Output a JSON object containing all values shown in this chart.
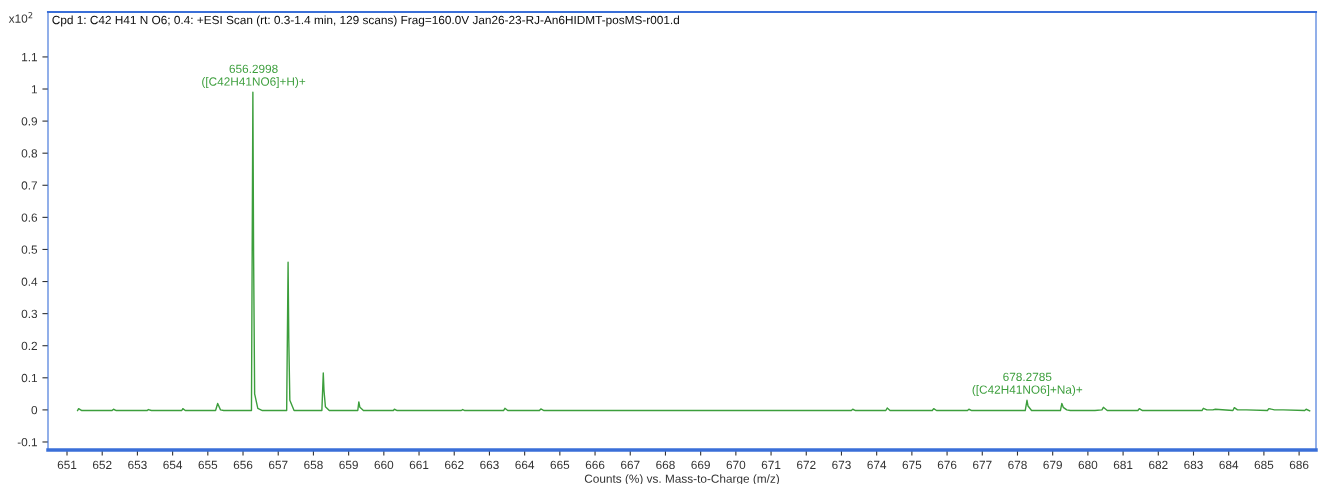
{
  "chart_data": {
    "type": "line",
    "title": "Cpd 1: C42 H41 N O6; 0.4: +ESI Scan (rt: 0.3-1.4 min, 129 scans) Frag=160.0V Jan26-23-RJ-An6HIDMT-posMS-r001.d",
    "xlabel": "Counts (%) vs. Mass-to-Charge (m/z)",
    "ylabel": "x10$^{2}$",
    "series": [
      {
        "color": "#3c9e3c",
        "x": [
          651.3,
          651.33,
          651.42,
          652.28,
          652.32,
          652.4,
          653.28,
          653.31,
          653.4,
          654.26,
          654.29,
          654.36,
          655.22,
          655.28,
          655.36,
          655.45,
          656.24,
          656.28,
          656.3,
          656.33,
          656.42,
          656.55,
          657.24,
          657.28,
          657.3,
          657.33,
          657.45,
          658.24,
          658.28,
          658.3,
          658.34,
          658.45,
          659.26,
          659.29,
          659.32,
          659.42,
          660.27,
          660.3,
          660.38,
          662.2,
          662.24,
          662.3,
          663.4,
          663.44,
          663.52,
          664.42,
          664.46,
          664.55,
          673.28,
          673.32,
          673.4,
          674.26,
          674.3,
          674.38,
          675.58,
          675.62,
          675.7,
          676.58,
          676.62,
          676.7,
          678.22,
          678.27,
          678.3,
          678.4,
          679.22,
          679.26,
          679.3,
          679.4,
          679.5,
          680.2,
          680.4,
          680.44,
          680.55,
          681.42,
          681.46,
          681.55,
          683.24,
          683.28,
          683.38,
          683.55,
          683.62,
          684.12,
          684.16,
          684.25,
          684.5,
          685.1,
          685.14,
          685.3,
          685.55,
          686.16,
          686.2,
          686.3
        ],
        "values": [
          -0.002,
          0.004,
          -0.002,
          -0.002,
          0.002,
          -0.002,
          -0.002,
          0.001,
          -0.002,
          -0.002,
          0.004,
          -0.002,
          -0.002,
          0.02,
          0.0,
          -0.002,
          -0.002,
          0.99,
          0.49,
          0.05,
          0.005,
          -0.002,
          -0.002,
          0.46,
          0.22,
          0.03,
          -0.002,
          -0.002,
          0.115,
          0.06,
          0.01,
          -0.002,
          -0.002,
          0.025,
          0.008,
          -0.002,
          -0.002,
          0.002,
          -0.002,
          -0.002,
          0.001,
          -0.002,
          -0.002,
          0.005,
          -0.002,
          -0.002,
          0.003,
          -0.002,
          -0.002,
          0.002,
          -0.002,
          -0.002,
          0.006,
          -0.002,
          -0.002,
          0.004,
          -0.002,
          -0.002,
          0.002,
          -0.002,
          -0.002,
          0.03,
          0.012,
          -0.002,
          -0.002,
          0.02,
          0.008,
          0.0,
          -0.002,
          -0.002,
          0.0,
          0.008,
          -0.002,
          -0.002,
          0.004,
          -0.002,
          -0.002,
          0.005,
          0.0,
          0.0,
          0.002,
          -0.002,
          0.007,
          0.0,
          0.0,
          -0.002,
          0.004,
          0.0,
          0.0,
          -0.002,
          0.002,
          -0.003
        ]
      }
    ],
    "annotations": [
      {
        "text": "656.2998\n([C42H41NO6]+H)+",
        "x": 656.2998,
        "y": 0.99
      },
      {
        "text": "678.2785\n([C42H41NO6]+Na)+",
        "x": 678.2785,
        "y": 0.03
      }
    ],
    "xlim": [
      650.46,
      686.48
    ],
    "ylim": [
      -0.125,
      1.24
    ],
    "xticks": [
      651,
      652,
      653,
      654,
      655,
      656,
      657,
      658,
      659,
      660,
      661,
      662,
      663,
      664,
      665,
      666,
      667,
      668,
      669,
      670,
      671,
      672,
      673,
      674,
      675,
      676,
      677,
      678,
      679,
      680,
      681,
      682,
      683,
      684,
      685,
      686
    ],
    "yticks": [
      -0.1,
      0,
      0.1,
      0.2,
      0.3,
      0.4,
      0.5,
      0.6,
      0.7,
      0.8,
      0.9,
      1,
      1.1
    ],
    "grid": false,
    "legend": false,
    "marker": "none",
    "line_style": "solid"
  }
}
